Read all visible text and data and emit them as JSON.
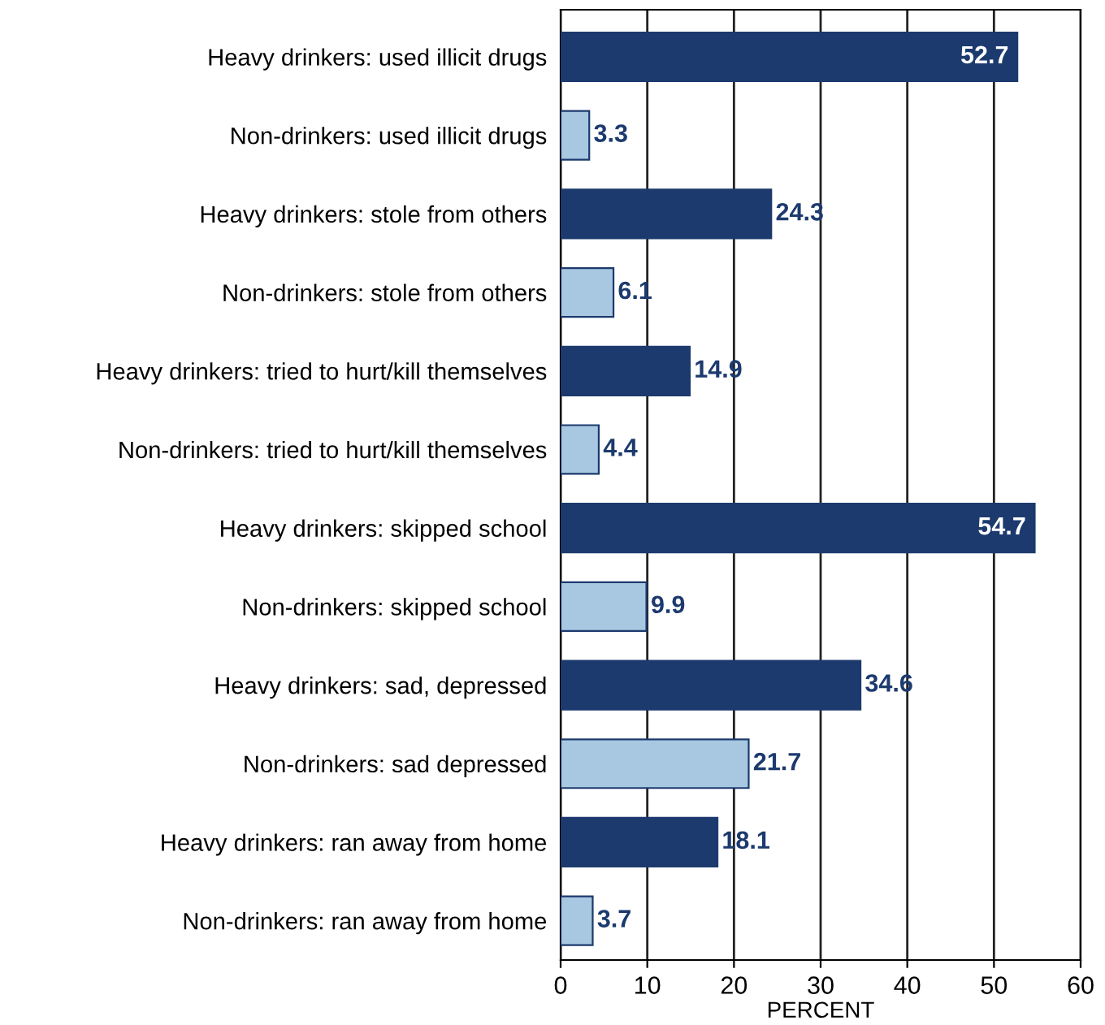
{
  "chart_data": {
    "type": "bar",
    "orientation": "horizontal",
    "xlabel": "PERCENT",
    "categories": [
      "Heavy drinkers: used illicit drugs",
      "Non-drinkers: used illicit drugs",
      "Heavy drinkers: stole from others",
      "Non-drinkers: stole from others",
      "Heavy drinkers: tried to hurt/kill themselves",
      "Non-drinkers: tried to hurt/kill themselves",
      "Heavy drinkers: skipped school",
      "Non-drinkers: skipped school",
      "Heavy drinkers: sad, depressed",
      "Non-drinkers: sad depressed",
      "Heavy drinkers: ran away from home",
      "Non-drinkers: ran away from home"
    ],
    "values": [
      52.7,
      3.3,
      24.3,
      6.1,
      14.9,
      4.4,
      54.7,
      9.9,
      34.6,
      21.7,
      18.1,
      3.7
    ],
    "colors": [
      "#1c3a6e",
      "#a8c8e2",
      "#1c3a6e",
      "#a8c8e2",
      "#1c3a6e",
      "#a8c8e2",
      "#1c3a6e",
      "#a8c8e2",
      "#1c3a6e",
      "#a8c8e2",
      "#1c3a6e",
      "#a8c8e2"
    ],
    "xlim": [
      0,
      60
    ],
    "xticks": [
      0,
      10,
      20,
      30,
      40,
      50,
      60
    ],
    "grid": "x",
    "data_labels": true
  }
}
